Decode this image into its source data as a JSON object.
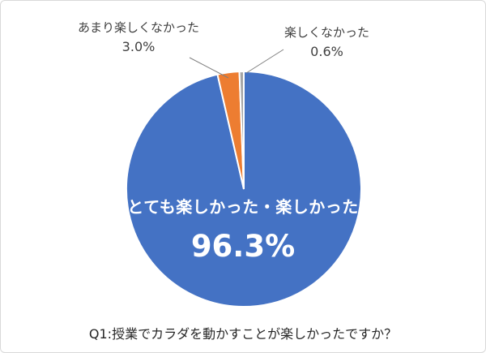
{
  "chart_data": {
    "type": "pie",
    "title": "Q1:授業でカラダを動かすことが楽しかったですか？",
    "categories": [
      "とても楽しかった・楽しかった",
      "あまり楽しくなかった",
      "楽しくなかった"
    ],
    "values": [
      96.3,
      3.0,
      0.6
    ],
    "colors": [
      "#4472C4",
      "#ED7D31",
      "#A5A5A5"
    ],
    "start_angle_deg": 0,
    "direction": "clockwise",
    "legend": "none",
    "grid": false,
    "main_label": {
      "text": "とても楽しかった・楽しかった",
      "value": "96.3%"
    },
    "callouts": [
      {
        "label": "あまり楽しくなかった",
        "value": "3.0%"
      },
      {
        "label": "楽しくなかった",
        "value": "0.6%"
      }
    ]
  }
}
